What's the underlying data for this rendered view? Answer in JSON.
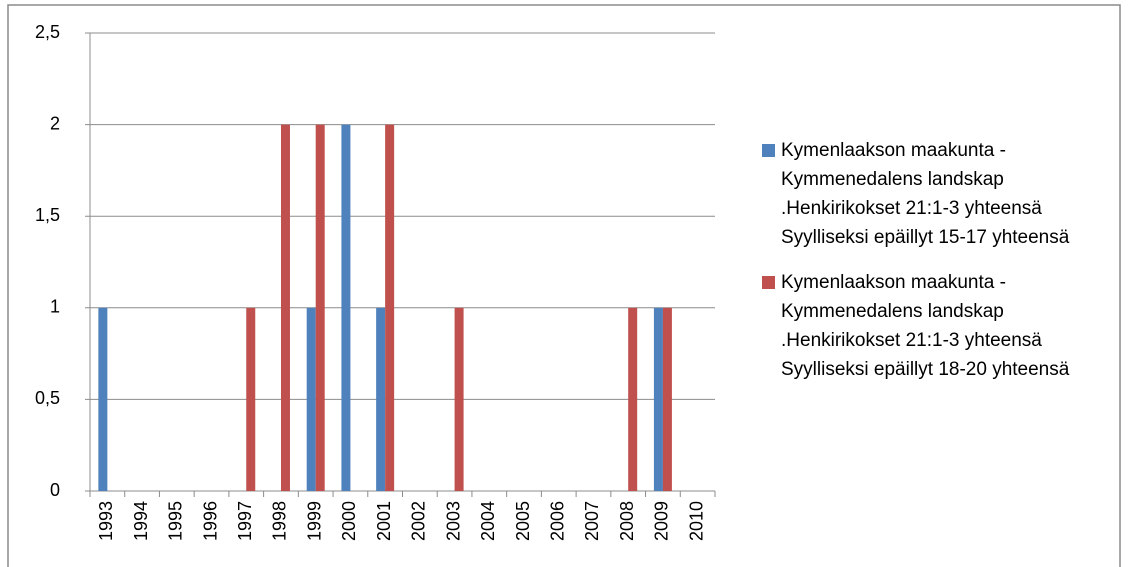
{
  "chart_data": {
    "type": "bar",
    "categories": [
      "1993",
      "1994",
      "1995",
      "1996",
      "1997",
      "1998",
      "1999",
      "2000",
      "2001",
      "2002",
      "2003",
      "2004",
      "2005",
      "2006",
      "2007",
      "2008",
      "2009",
      "2010"
    ],
    "series": [
      {
        "name": "Kymenlaakson maakunta - Kymmenedalens landskap .Henkirikokset  21:1-3 yhteensä Syylliseksi epäillyt 15-17 yhteensä",
        "color": "#4f81bd",
        "values": [
          1,
          0,
          0,
          0,
          0,
          0,
          1,
          2,
          1,
          0,
          0,
          0,
          0,
          0,
          0,
          0,
          1,
          0
        ]
      },
      {
        "name": "Kymenlaakson maakunta - Kymmenedalens landskap .Henkirikokset  21:1-3 yhteensä Syylliseksi epäillyt 18-20 yhteensä",
        "color": "#c0504d",
        "values": [
          0,
          0,
          0,
          0,
          1,
          2,
          2,
          0,
          2,
          0,
          1,
          0,
          0,
          0,
          0,
          1,
          1,
          0
        ]
      }
    ],
    "ylim": [
      0,
      2.5
    ],
    "yticks": [
      0,
      {
        "value": 0.5,
        "label": "0,5"
      },
      1,
      {
        "value": 1.5,
        "label": "1,5"
      },
      2,
      {
        "value": 2.5,
        "label": "2,5"
      }
    ],
    "grid": true,
    "legend": "right"
  }
}
